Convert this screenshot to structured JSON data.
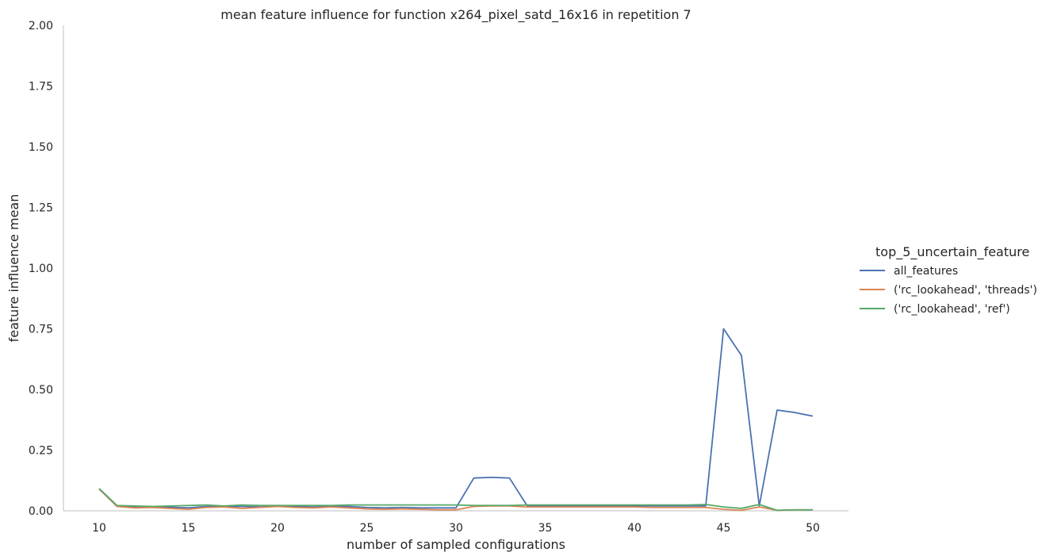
{
  "chart_data": {
    "type": "line",
    "title": "mean feature influence for function x264_pixel_satd_16x16 in repetition 7",
    "xlabel": "number of sampled configurations",
    "ylabel": "feature influence mean",
    "xlim": [
      8,
      52
    ],
    "ylim": [
      0,
      2.0
    ],
    "xticks": [
      10,
      15,
      20,
      25,
      30,
      35,
      40,
      45,
      50
    ],
    "yticks": [
      0.0,
      0.25,
      0.5,
      0.75,
      1.0,
      1.25,
      1.5,
      1.75,
      2.0
    ],
    "ytick_labels": [
      "0.00",
      "0.25",
      "0.50",
      "0.75",
      "1.00",
      "1.25",
      "1.50",
      "1.75",
      "2.00"
    ],
    "grid": false,
    "legend": {
      "title": "top_5_uncertain_feature",
      "placement": "right"
    },
    "x": [
      10,
      11,
      12,
      13,
      14,
      15,
      16,
      17,
      18,
      19,
      20,
      21,
      22,
      23,
      24,
      25,
      26,
      27,
      28,
      29,
      30,
      31,
      32,
      33,
      34,
      35,
      36,
      37,
      38,
      39,
      40,
      41,
      42,
      43,
      44,
      45,
      46,
      47,
      48,
      49,
      50
    ],
    "series": [
      {
        "name": "all_features",
        "color": "#4c72b0",
        "values": [
          0.09,
          0.02,
          0.015,
          0.015,
          0.015,
          0.012,
          0.018,
          0.018,
          0.018,
          0.016,
          0.02,
          0.018,
          0.016,
          0.018,
          0.018,
          0.014,
          0.012,
          0.014,
          0.012,
          0.012,
          0.012,
          0.135,
          0.138,
          0.135,
          0.02,
          0.02,
          0.02,
          0.02,
          0.02,
          0.02,
          0.02,
          0.02,
          0.02,
          0.02,
          0.02,
          0.75,
          0.64,
          0.02,
          0.415,
          0.405,
          0.39
        ]
      },
      {
        "name": "('rc_lookahead', 'threads')",
        "color": "#dd8452",
        "values": [
          0.09,
          0.018,
          0.012,
          0.014,
          0.01,
          0.006,
          0.014,
          0.016,
          0.01,
          0.014,
          0.018,
          0.014,
          0.012,
          0.016,
          0.012,
          0.008,
          0.006,
          0.008,
          0.006,
          0.004,
          0.004,
          0.018,
          0.02,
          0.02,
          0.016,
          0.016,
          0.016,
          0.016,
          0.016,
          0.016,
          0.016,
          0.014,
          0.014,
          0.014,
          0.014,
          0.006,
          0.002,
          0.016,
          0.002,
          0.004,
          0.004
        ]
      },
      {
        "name": "('rc_lookahead', 'ref')",
        "color": "#55a868",
        "values": [
          0.092,
          0.022,
          0.02,
          0.018,
          0.02,
          0.022,
          0.024,
          0.02,
          0.024,
          0.022,
          0.022,
          0.022,
          0.022,
          0.022,
          0.024,
          0.024,
          0.024,
          0.024,
          0.024,
          0.024,
          0.024,
          0.022,
          0.022,
          0.022,
          0.024,
          0.024,
          0.024,
          0.024,
          0.024,
          0.024,
          0.024,
          0.024,
          0.024,
          0.024,
          0.026,
          0.016,
          0.01,
          0.026,
          0.002,
          0.004,
          0.004
        ]
      }
    ]
  }
}
